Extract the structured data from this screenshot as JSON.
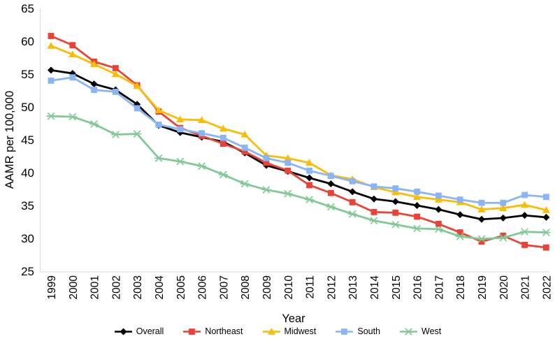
{
  "figure": {
    "background_color": "#ffffff",
    "axis_line_color": "#d9d9d9",
    "text_color": "#000000"
  },
  "chart_data": {
    "type": "line",
    "title": "",
    "xlabel": "Year",
    "ylabel": "AAMR per 100,000",
    "ylim": [
      25,
      65
    ],
    "y_tick_step": 5,
    "y_ticks": [
      65,
      60,
      55,
      50,
      45,
      40,
      35,
      30,
      25
    ],
    "grid": false,
    "legend_position": "bottom",
    "categories": [
      "1999",
      "2000",
      "2001",
      "2002",
      "2003",
      "2004",
      "2005",
      "2006",
      "2007",
      "2008",
      "2009",
      "2010",
      "2011",
      "2012",
      "2013",
      "2014",
      "2015",
      "2016",
      "2017",
      "2018",
      "2019",
      "2020",
      "2021",
      "2022"
    ],
    "series": [
      {
        "name": "Overall",
        "color": "#000000",
        "marker": "diamond",
        "values": [
          55.6,
          55.1,
          53.5,
          52.6,
          50.4,
          47.2,
          46.1,
          45.4,
          44.7,
          43.0,
          41.1,
          40.2,
          39.2,
          38.3,
          37.1,
          36.0,
          35.6,
          35.0,
          34.4,
          33.6,
          32.9,
          33.1,
          33.5,
          33.2
        ]
      },
      {
        "name": "Northeast",
        "color": "#ea4335",
        "marker": "square",
        "values": [
          60.8,
          59.4,
          56.9,
          55.9,
          53.3,
          49.3,
          46.8,
          45.6,
          44.4,
          43.2,
          41.5,
          40.3,
          38.1,
          36.9,
          35.5,
          34.0,
          33.9,
          33.3,
          32.2,
          30.9,
          29.5,
          30.4,
          29.0,
          28.6
        ]
      },
      {
        "name": "Midwest",
        "color": "#fbbc04",
        "marker": "triangle",
        "values": [
          59.3,
          58.0,
          56.5,
          55.0,
          53.2,
          49.5,
          48.1,
          48.0,
          46.7,
          45.8,
          42.6,
          42.2,
          41.5,
          39.6,
          39.0,
          37.8,
          37.0,
          36.3,
          35.9,
          35.5,
          34.4,
          34.6,
          35.1,
          34.3
        ]
      },
      {
        "name": "South",
        "color": "#8ab4f8",
        "marker": "square",
        "values": [
          54.0,
          54.5,
          52.6,
          52.3,
          49.8,
          47.3,
          46.6,
          46.0,
          45.3,
          43.8,
          42.2,
          41.5,
          40.3,
          39.5,
          38.7,
          37.9,
          37.6,
          37.1,
          36.5,
          35.9,
          35.4,
          35.4,
          36.6,
          36.3
        ]
      },
      {
        "name": "West",
        "color": "#81c995",
        "marker": "asterisk",
        "values": [
          48.6,
          48.5,
          47.4,
          45.8,
          45.9,
          42.2,
          41.7,
          41.0,
          39.7,
          38.3,
          37.4,
          36.8,
          35.9,
          34.8,
          33.7,
          32.7,
          32.1,
          31.5,
          31.4,
          30.3,
          29.9,
          30.1,
          31.0,
          30.9
        ]
      }
    ]
  }
}
